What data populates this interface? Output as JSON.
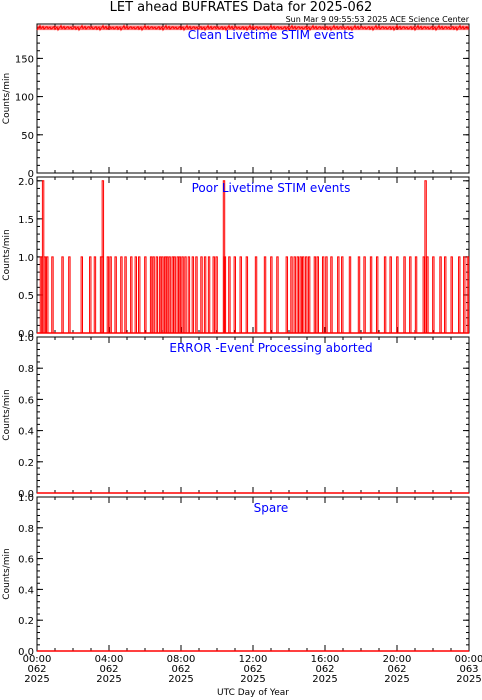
{
  "title": "LET ahead BUFRATES Data for 2025-062",
  "subtitle": "Sun Mar  9 09:55:53 2025 ACE Science Center",
  "colors": {
    "data": "#ff0000",
    "panel_title": "#0000ff",
    "axis": "#000000"
  },
  "x_axis": {
    "label": "UTC Day of Year",
    "ticks": [
      {
        "hour": 0,
        "lines": [
          "00:00",
          "062",
          "2025"
        ]
      },
      {
        "hour": 4,
        "lines": [
          "04:00",
          "062",
          "2025"
        ]
      },
      {
        "hour": 8,
        "lines": [
          "08:00",
          "062",
          "2025"
        ]
      },
      {
        "hour": 12,
        "lines": [
          "12:00",
          "062",
          "2025"
        ]
      },
      {
        "hour": 16,
        "lines": [
          "16:00",
          "062",
          "2025"
        ]
      },
      {
        "hour": 20,
        "lines": [
          "20:00",
          "062",
          "2025"
        ]
      },
      {
        "hour": 24,
        "lines": [
          "00:00",
          "063",
          "2025"
        ]
      }
    ]
  },
  "chart_data": [
    {
      "type": "line",
      "panel_title": "Clean Livetime STIM events",
      "ylabel": "Counts/min",
      "xlim": [
        0,
        24
      ],
      "ylim": [
        0,
        195
      ],
      "yticks": [
        0,
        50,
        100,
        150
      ],
      "ytick_labels": [
        "0",
        "50",
        "100",
        "150"
      ],
      "baseline": 190,
      "noise_band": [
        187,
        193
      ]
    },
    {
      "type": "line",
      "panel_title": "Poor Livetime STIM events",
      "ylabel": "Counts/min",
      "xlim": [
        0,
        24
      ],
      "ylim": [
        0,
        2.05
      ],
      "yticks": [
        0,
        0.5,
        1.0,
        1.5,
        2.0
      ],
      "ytick_labels": [
        "0.0",
        "0.5",
        "1.0",
        "1.5",
        "2.0"
      ],
      "baseline": 0,
      "spikes_value_1_hours": [
        0.18,
        0.4,
        0.53,
        0.82,
        1.38,
        1.76,
        2.45,
        2.92,
        3.18,
        3.52,
        3.61,
        3.9,
        4.05,
        4.33,
        4.65,
        4.88,
        5.2,
        5.45,
        5.64,
        5.98,
        6.3,
        6.44,
        6.62,
        6.8,
        6.93,
        7.08,
        7.19,
        7.33,
        7.5,
        7.61,
        7.78,
        7.9,
        8.05,
        8.21,
        8.4,
        8.62,
        8.82,
        9.1,
        9.3,
        9.52,
        9.78,
        9.94,
        10.4,
        10.65,
        10.95,
        11.28,
        11.62,
        12.13,
        12.63,
        12.98,
        13.32,
        13.84,
        14.1,
        14.28,
        14.45,
        14.61,
        14.75,
        14.92,
        15.08,
        15.4,
        15.56,
        15.86,
        16.04,
        16.32,
        16.7,
        16.92,
        17.35,
        17.85,
        18.16,
        18.52,
        18.86,
        19.3,
        19.61,
        19.98,
        20.38,
        20.7,
        21.02,
        21.45,
        21.65,
        21.98,
        22.38,
        22.64,
        23.0,
        23.42,
        23.7,
        23.9
      ],
      "spikes_value_2_hours": [
        0.3,
        3.62,
        10.35,
        21.55
      ]
    },
    {
      "type": "line",
      "panel_title": "ERROR -Event Processing aborted",
      "ylabel": "Counts/min",
      "xlim": [
        0,
        24
      ],
      "ylim": [
        0,
        1.0
      ],
      "yticks": [
        0,
        0.2,
        0.4,
        0.6,
        0.8,
        1.0
      ],
      "ytick_labels": [
        "0.0",
        "0.2",
        "0.4",
        "0.6",
        "0.8",
        "1.0"
      ],
      "baseline": 0
    },
    {
      "type": "line",
      "panel_title": "Spare",
      "ylabel": "Counts/min",
      "xlim": [
        0,
        24
      ],
      "ylim": [
        0,
        1.0
      ],
      "yticks": [
        0,
        0.2,
        0.4,
        0.6,
        0.8,
        1.0
      ],
      "ytick_labels": [
        "0.0",
        "0.2",
        "0.4",
        "0.6",
        "0.8",
        "1.0"
      ],
      "baseline": 0
    }
  ]
}
